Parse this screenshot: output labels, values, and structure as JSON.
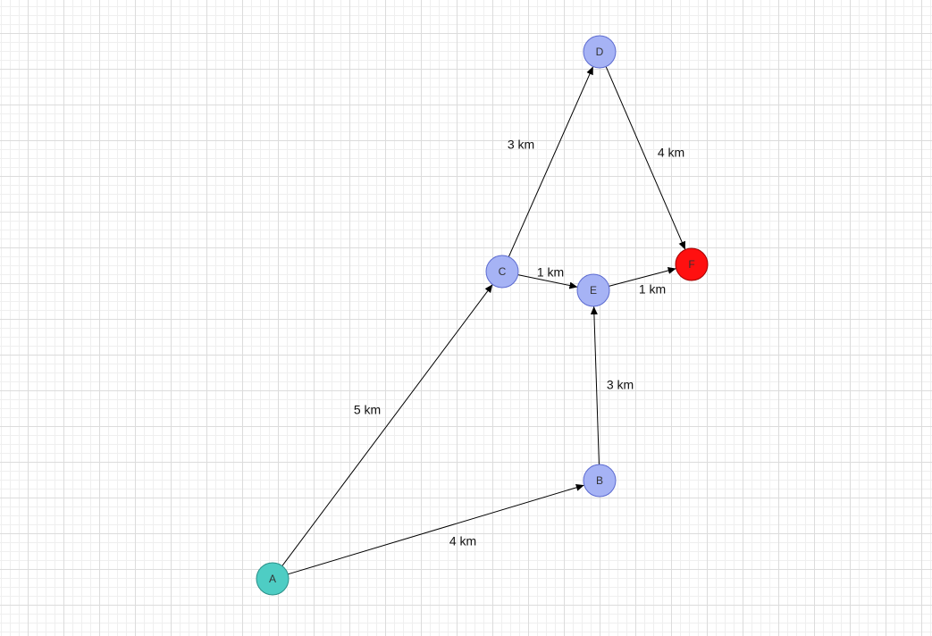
{
  "diagram": {
    "nodes": [
      {
        "id": "A",
        "label": "A",
        "fill": "#4ecdc4",
        "stroke": "#2a8f88"
      },
      {
        "id": "B",
        "label": "B",
        "fill": "#a6b3f5",
        "stroke": "#5b6ad0"
      },
      {
        "id": "C",
        "label": "C",
        "fill": "#a6b3f5",
        "stroke": "#5b6ad0"
      },
      {
        "id": "D",
        "label": "D",
        "fill": "#a6b3f5",
        "stroke": "#5b6ad0"
      },
      {
        "id": "E",
        "label": "E",
        "fill": "#a6b3f5",
        "stroke": "#5b6ad0"
      },
      {
        "id": "F",
        "label": "F",
        "fill": "#ff1010",
        "stroke": "#a00000"
      }
    ],
    "edges": [
      {
        "from": "A",
        "to": "C",
        "label": "5 km"
      },
      {
        "from": "A",
        "to": "B",
        "label": "4 km"
      },
      {
        "from": "C",
        "to": "D",
        "label": "3 km"
      },
      {
        "from": "D",
        "to": "F",
        "label": "4 km"
      },
      {
        "from": "C",
        "to": "E",
        "label": "1 km"
      },
      {
        "from": "E",
        "to": "F",
        "label": "1 km"
      },
      {
        "from": "B",
        "to": "E",
        "label": "3 km"
      }
    ]
  }
}
